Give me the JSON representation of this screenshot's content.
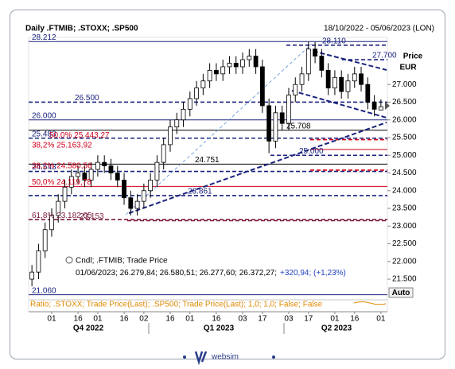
{
  "header": {
    "title": "Daily .FTMIB; .STOXX; .SP500",
    "range": "18/10/2022 - 05/06/2023 (LON)"
  },
  "chart_data": {
    "type": "candlestick",
    "categories": [
      null,
      null,
      null,
      "01",
      null,
      null,
      null,
      "16",
      null,
      null,
      "01",
      null,
      null,
      null,
      "16",
      null,
      null,
      "02",
      null,
      null,
      null,
      "16",
      null,
      null,
      "01",
      null,
      null,
      null,
      "16",
      null,
      null,
      null,
      "03",
      null,
      null,
      "17",
      null,
      null,
      null,
      "03",
      null,
      null,
      "17",
      null,
      null,
      null,
      "01",
      null,
      null,
      "16",
      null,
      null,
      null,
      "01"
    ],
    "open": [
      21500,
      21700,
      22300,
      22900,
      23300,
      23700,
      24100,
      24400,
      24500,
      24300,
      24600,
      24800,
      24700,
      24500,
      24300,
      23800,
      23500,
      23700,
      24000,
      24300,
      24800,
      25300,
      25800,
      26000,
      26300,
      26600,
      26900,
      27100,
      27400,
      27300,
      27500,
      27600,
      27500,
      27700,
      27800,
      27500,
      26400,
      25400,
      26200,
      25900,
      26700,
      27000,
      27300,
      28000,
      27800,
      27400,
      26900,
      27200,
      26800,
      27100,
      27300,
      27000,
      26500,
      26279.84
    ],
    "high": [
      21900,
      22500,
      23100,
      23500,
      23900,
      24300,
      24600,
      24700,
      24700,
      24800,
      25000,
      25000,
      24900,
      24700,
      24500,
      24000,
      23900,
      24200,
      24500,
      25000,
      25500,
      26000,
      26200,
      26500,
      26800,
      27100,
      27300,
      27600,
      27600,
      27700,
      27800,
      27800,
      27900,
      28000,
      28000,
      27700,
      26600,
      26400,
      26400,
      26900,
      27200,
      27500,
      28200,
      28200,
      28000,
      27600,
      27400,
      27400,
      27300,
      27500,
      27500,
      27200,
      26700,
      26580.51
    ],
    "low": [
      21300,
      21500,
      22100,
      22700,
      23100,
      23500,
      23900,
      24200,
      24100,
      24100,
      24400,
      24500,
      24300,
      24100,
      23600,
      23300,
      23300,
      23500,
      23800,
      24100,
      24600,
      25100,
      25600,
      25800,
      26100,
      26400,
      26700,
      26900,
      27100,
      27100,
      27300,
      27300,
      27300,
      27500,
      27300,
      26200,
      25060,
      25200,
      25700,
      25700,
      26500,
      26800,
      27100,
      27600,
      27200,
      26700,
      26700,
      26600,
      26600,
      26900,
      26800,
      26300,
      26100,
      26277.6
    ],
    "close": [
      21700,
      22300,
      22900,
      23300,
      23700,
      24100,
      24400,
      24500,
      24300,
      24600,
      24800,
      24700,
      24500,
      24300,
      23800,
      23500,
      23700,
      24000,
      24300,
      24800,
      25300,
      25800,
      26000,
      26300,
      26600,
      26900,
      27100,
      27400,
      27300,
      27500,
      27600,
      27500,
      27700,
      27800,
      27500,
      26400,
      25400,
      26200,
      25900,
      26700,
      27000,
      27300,
      28000,
      27800,
      27400,
      26900,
      27200,
      26800,
      27100,
      27300,
      27000,
      26500,
      26300,
      26372.27
    ],
    "up_color": "#ffffff",
    "down_color": "#000000",
    "ylim": [
      20940,
      28330
    ],
    "yticks": [
      {
        "value": 27000,
        "label": "27.000"
      },
      {
        "value": 26500,
        "label": "26.500"
      },
      {
        "value": 26000,
        "label": "26.000"
      },
      {
        "value": 25500,
        "label": "25.500"
      },
      {
        "value": 25000,
        "label": "25.000"
      },
      {
        "value": 24500,
        "label": "24.500"
      },
      {
        "value": 24000,
        "label": "24.000"
      },
      {
        "value": 23500,
        "label": "23.500"
      },
      {
        "value": 23000,
        "label": "23.000"
      },
      {
        "value": 22500,
        "label": "22.500"
      },
      {
        "value": 22000,
        "label": "22.000"
      },
      {
        "value": 21500,
        "label": "21.500"
      }
    ],
    "grid": false,
    "ylabel": "Price",
    "yunit": "EUR",
    "quarters": [
      "Q4 2022",
      "Q1 2023",
      "Q2 2023"
    ],
    "levels": [
      {
        "value": 28212,
        "label": "28.212",
        "style": "solid",
        "color": "#1a237e"
      },
      {
        "value": 28110,
        "label": "28.110",
        "style": "dashed",
        "color": "#1a237e"
      },
      {
        "value": 27700,
        "label": "27.700",
        "style": "dashed",
        "color": "#1a237e"
      },
      {
        "value": 26500,
        "label": "26.500",
        "style": "dashed",
        "color": "#1a237e"
      },
      {
        "value": 26000,
        "label": "26.000",
        "style": "solid",
        "color": "#1a237e"
      },
      {
        "value": 25708,
        "label": "25.708",
        "style": "solid",
        "color": "#000000"
      },
      {
        "value": 25483,
        "label": "25.483",
        "style": "dashed",
        "color": "#1a237e"
      },
      {
        "value": 25000,
        "label": "25.000",
        "style": "dashed",
        "color": "#1a237e"
      },
      {
        "value": 24751,
        "label": "24.751",
        "style": "solid",
        "color": "#000000"
      },
      {
        "value": 24543,
        "label": "24.543",
        "style": "dashed",
        "color": "#1a237e"
      },
      {
        "value": 23861,
        "label": "23.861",
        "style": "dashed",
        "color": "#1a237e"
      },
      {
        "value": 23153,
        "label": "23.153",
        "style": "dashed",
        "color": "#7b1b3a"
      },
      {
        "value": 21060,
        "label": "21.060",
        "style": "solid",
        "color": "#1a237e"
      }
    ],
    "fib_levels": [
      {
        "value": 25443.27,
        "label": "50,0% 25.443,27",
        "style": "dashed",
        "color": "#d0021b"
      },
      {
        "value": 25163.92,
        "label": "38,2% 25.163,92",
        "style": "solid",
        "color": "#d0021b"
      },
      {
        "value": 24580.56,
        "label": "38,2% 24.580,56",
        "style": "dashed",
        "color": "#d0021b"
      },
      {
        "value": 24119.78,
        "label": "50,0% 24.119,78",
        "style": "solid",
        "color": "#d0021b"
      },
      {
        "value": 23182.05,
        "label": "61,8% 23.182,05",
        "style": "dashed",
        "color": "#7b1b3a"
      }
    ],
    "info": {
      "title": "Cndl; .FTMIB; Trade Price",
      "values": "01/06/2023; 26.279,84; 26.580,51; 26.277,60; 26.372,27;",
      "change": "+320,94; (+1,23%)"
    },
    "indicator": "Ratio; .STOXX; Trade Price(Last); .SP500; Trade Price(Last); 1,0; 1,0; False; False",
    "auto_button": "Auto"
  },
  "footer": {
    "brand": "websim"
  }
}
